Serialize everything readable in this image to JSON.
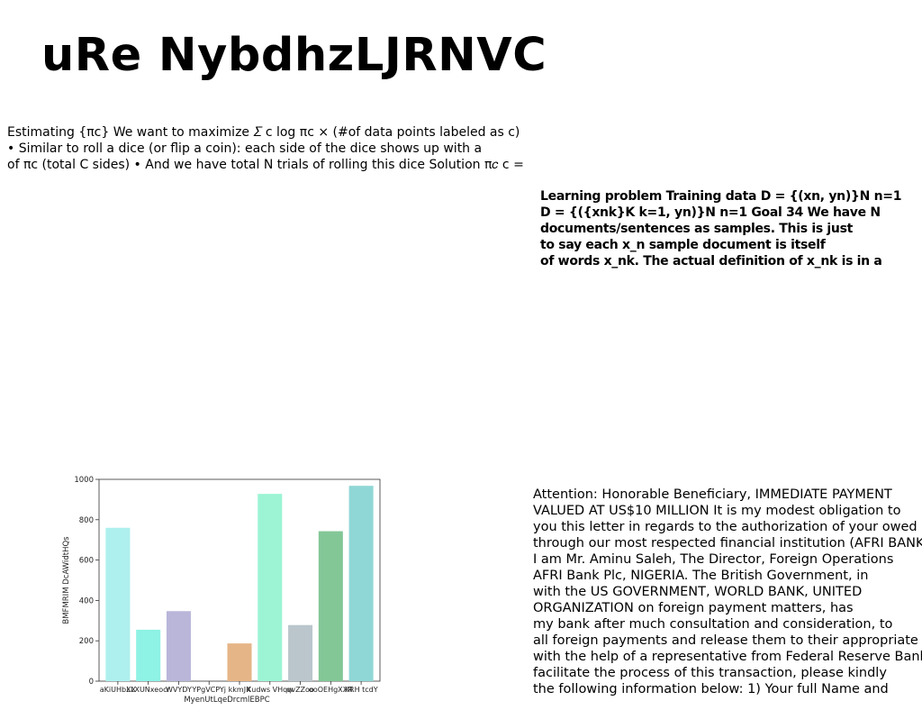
{
  "document": {
    "title": "uRe NybdhzLJRNVC",
    "block1_lines": [
      "Estimating {πc} We want to maximize 𝛴 c log πc × (#of data points labeled as c)",
      "• Similar to roll a dice (or flip a coin): each side of the dice shows up with a",
      "of πc (total C sides) • And we have total N trials of rolling this dice Solution π𝑐 c ="
    ],
    "block2_lines": [
      "Learning problem Training data D = {(xn, yn)}N n=1",
      "D = {({xnk}K k=1, yn)}N n=1 Goal 34 We have N",
      "documents/sentences as samples. This is just",
      "to say each x_n sample document is itself",
      "of words x_nk. The actual definition of x_nk is in a"
    ],
    "block3_lines": [
      "Attention: Honorable Beneficiary, IMMEDIATE PAYMENT",
      "VALUED AT US$10 MILLION It is my modest obligation to",
      "you this letter in regards to the authorization of your owed",
      "through our most respected financial institution (AFRI BANK",
      "I am Mr. Aminu Saleh, The Director, Foreign Operations",
      "AFRI Bank Plc, NIGERIA. The British Government, in",
      "with the US GOVERNMENT, WORLD BANK, UNITED",
      "ORGANIZATION on foreign payment matters, has",
      "my bank after much consultation and consideration, to",
      "all foreign payments and release them to their appropriate",
      "with the help of a representative from Federal Reserve Bank.",
      "facilitate the process of this transaction, please kindly",
      "the following information below: 1) Your full Name and"
    ]
  },
  "chart_data": {
    "type": "bar",
    "categories": [
      "aKiUHbXX",
      "LLXUNxeocr",
      "WVYDY",
      "YPgVCPYj",
      "kkmJK",
      "Xudws VHqw",
      "qvZZoo",
      "ooOEHgXXR",
      "XRH tcdY"
    ],
    "values": [
      760,
      255,
      347,
      0,
      187,
      928,
      278,
      743,
      968
    ],
    "colors": [
      "#aef0ee",
      "#8ef2e4",
      "#b9b6da",
      "#cccccc",
      "#e6b587",
      "#9cf4d4",
      "#bac6cc",
      "#83c797",
      "#8fd7d6"
    ],
    "xlabel": "MyenUtLqeDrcmlEBPC",
    "ylabel": "BMFMRIM DcAWidtHQs",
    "ylim": [
      0,
      1000
    ],
    "yticks": [
      0,
      200,
      400,
      600,
      800,
      1000
    ],
    "grid": false
  }
}
